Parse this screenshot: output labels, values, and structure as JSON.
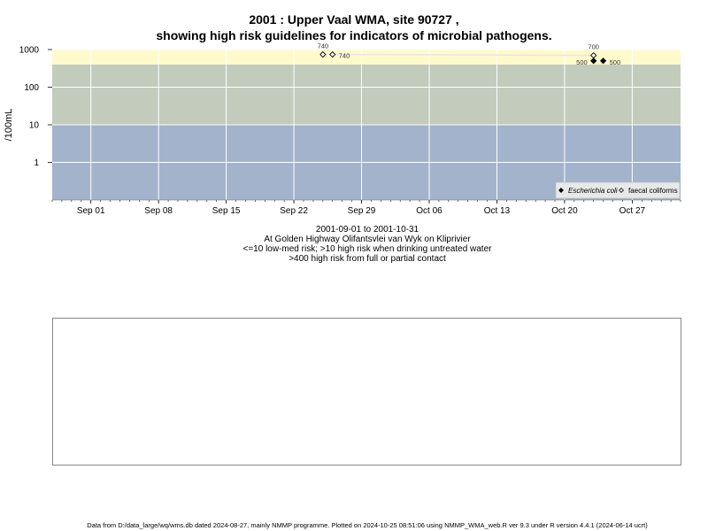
{
  "title_line1": "2001 : Upper Vaal WMA, site 90727 ,",
  "title_line2": "showing high risk guidelines for indicators of microbial pathogens.",
  "caption": {
    "date_range": "2001-09-01 to 2001-10-31",
    "location": "At Golden Highway Olifantsvlei van Wyk on Kliprivier",
    "risk_low": "<=10 low-med risk; >10 high risk when drinking untreated water",
    "risk_high": ">400 high risk from full or partial contact"
  },
  "footer": "Data from D:/data_large/wq/wms.db dated 2024-08-27, mainly NMMP programme. Plotted on 2024-10-25 08:51:06 using NMMP_WMA_web.R ver 9.3 under R version 4.4.1 (2024-06-14 ucrt)",
  "chart_data": {
    "type": "scatter",
    "ylabel": "/100mL",
    "yscale": "log",
    "ylim": [
      0.1,
      1000
    ],
    "y_ticks": [
      1,
      10,
      100,
      1000
    ],
    "y_tick_labels": [
      "1",
      "10",
      "100",
      "1000"
    ],
    "xlim": [
      "2001-08-28",
      "2001-11-01"
    ],
    "x_ticks": [
      "2001-09-01",
      "2001-09-08",
      "2001-09-15",
      "2001-09-22",
      "2001-09-29",
      "2001-10-06",
      "2001-10-13",
      "2001-10-20",
      "2001-10-27"
    ],
    "x_tick_labels": [
      "Sep 01",
      "Sep 08",
      "Sep 15",
      "Sep 22",
      "Sep 29",
      "Oct 06",
      "Oct 13",
      "Oct 20",
      "Oct 27"
    ],
    "risk_bands": [
      {
        "from": 0.1,
        "to": 10,
        "color": "#a3b3cc"
      },
      {
        "from": 10,
        "to": 400,
        "color": "#c3cbbd"
      },
      {
        "from": 400,
        "to": 1000,
        "color": "#fffacc"
      }
    ],
    "grid": true,
    "legend_position": "bottom-right",
    "series": [
      {
        "name": "Escherichia coli",
        "marker": "filled-diamond",
        "color": "#000000",
        "points": [
          {
            "x": "2001-10-23",
            "y": 500,
            "label": "500"
          },
          {
            "x": "2001-10-24",
            "y": 500,
            "label": "500"
          }
        ]
      },
      {
        "name": "faecal coliforms",
        "marker": "open-diamond",
        "color": "#000000",
        "points": [
          {
            "x": "2001-09-25",
            "y": 740,
            "label": "740"
          },
          {
            "x": "2001-09-26",
            "y": 740,
            "label": "740"
          },
          {
            "x": "2001-10-23",
            "y": 700,
            "label": "700"
          }
        ]
      }
    ]
  }
}
